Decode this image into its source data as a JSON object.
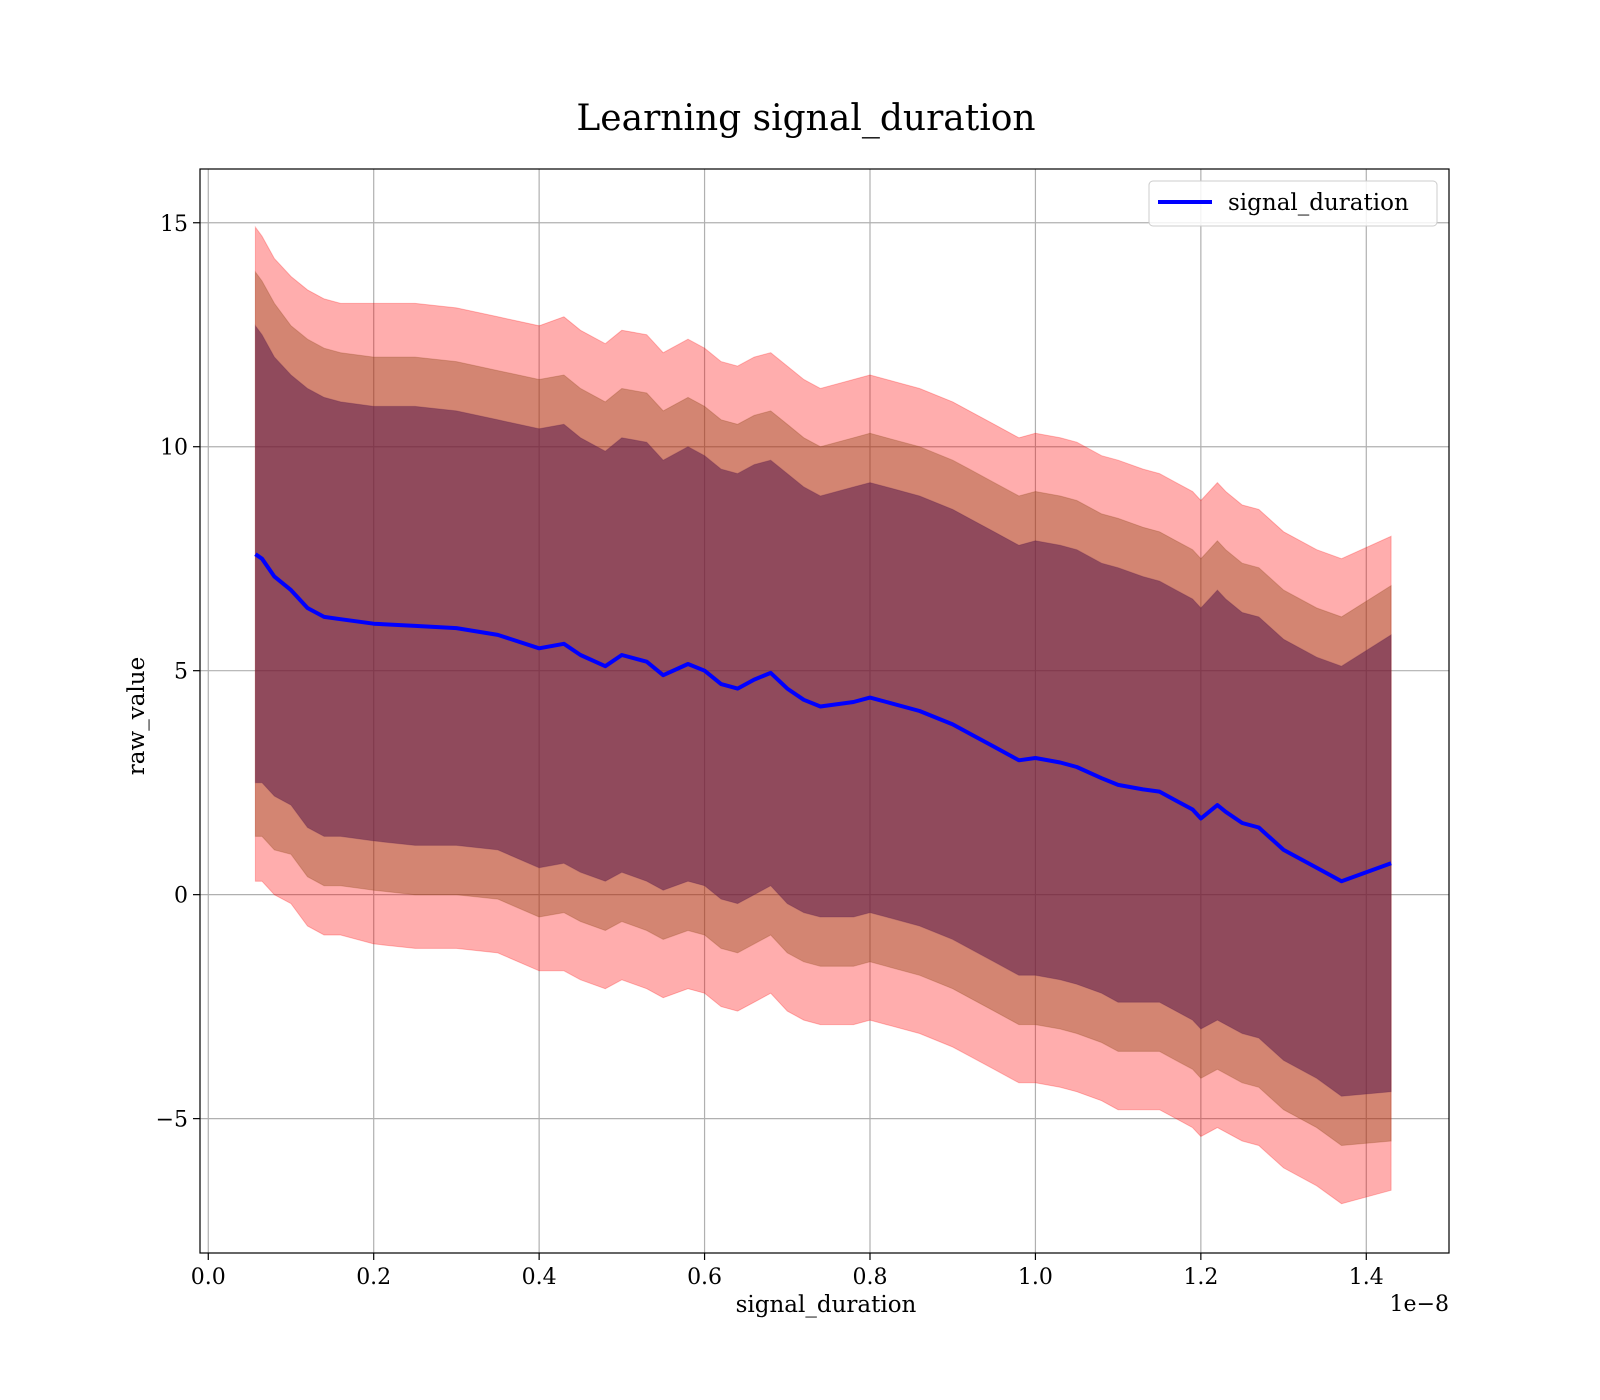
{
  "chart_data": {
    "type": "line",
    "title": "Learning signal_duration",
    "xlabel": "signal_duration",
    "ylabel": "raw_value",
    "x_offset_text": "1e−8",
    "x_scale": 1e-08,
    "xlim": [
      -0.01,
      1.5
    ],
    "ylim": [
      -8,
      16.2
    ],
    "x_ticks": [
      0.0,
      0.2,
      0.4,
      0.6,
      0.8,
      1.0,
      1.2,
      1.4
    ],
    "x_tick_labels": [
      "0.0",
      "0.2",
      "0.4",
      "0.6",
      "0.8",
      "1.0",
      "1.2",
      "1.4"
    ],
    "y_ticks": [
      -5,
      0,
      5,
      10,
      15
    ],
    "y_tick_labels": [
      "−5",
      "0",
      "5",
      "10",
      "15"
    ],
    "grid": true,
    "legend": {
      "position": "top-right",
      "entries": [
        "signal_duration"
      ]
    },
    "colors": {
      "mean_line": "#0000ff",
      "band_outer": "#ff0000",
      "band_middle": "#8b4513",
      "band_inner": "#5a1a4a",
      "grid": "#b0b0b0"
    },
    "x": [
      0.057,
      0.065,
      0.08,
      0.1,
      0.12,
      0.14,
      0.16,
      0.2,
      0.25,
      0.3,
      0.35,
      0.4,
      0.43,
      0.45,
      0.48,
      0.5,
      0.53,
      0.55,
      0.58,
      0.6,
      0.62,
      0.64,
      0.66,
      0.68,
      0.7,
      0.72,
      0.74,
      0.78,
      0.8,
      0.82,
      0.86,
      0.9,
      0.92,
      0.95,
      0.98,
      1.0,
      1.03,
      1.05,
      1.08,
      1.1,
      1.13,
      1.15,
      1.17,
      1.19,
      1.2,
      1.22,
      1.23,
      1.25,
      1.27,
      1.3,
      1.34,
      1.37,
      1.43
    ],
    "series": [
      {
        "name": "signal_duration",
        "values": [
          7.6,
          7.5,
          7.1,
          6.8,
          6.4,
          6.2,
          6.15,
          6.05,
          6.0,
          5.95,
          5.8,
          5.5,
          5.6,
          5.35,
          5.1,
          5.35,
          5.2,
          4.9,
          5.15,
          5.0,
          4.7,
          4.6,
          4.8,
          4.95,
          4.6,
          4.35,
          4.2,
          4.3,
          4.4,
          4.3,
          4.1,
          3.8,
          3.6,
          3.3,
          3.0,
          3.05,
          2.95,
          2.85,
          2.6,
          2.45,
          2.35,
          2.3,
          2.1,
          1.9,
          1.7,
          2.0,
          1.85,
          1.6,
          1.5,
          1.0,
          0.6,
          0.3,
          0.7
        ]
      }
    ],
    "bands": [
      {
        "level": "outer",
        "upper": [
          14.9,
          14.7,
          14.2,
          13.8,
          13.5,
          13.3,
          13.2,
          13.2,
          13.2,
          13.1,
          12.9,
          12.7,
          12.9,
          12.6,
          12.3,
          12.6,
          12.5,
          12.1,
          12.4,
          12.2,
          11.9,
          11.8,
          12.0,
          12.1,
          11.8,
          11.5,
          11.3,
          11.5,
          11.6,
          11.5,
          11.3,
          11.0,
          10.8,
          10.5,
          10.2,
          10.3,
          10.2,
          10.1,
          9.8,
          9.7,
          9.5,
          9.4,
          9.2,
          9.0,
          8.8,
          9.2,
          9.0,
          8.7,
          8.6,
          8.1,
          7.7,
          7.5,
          8.0
        ]
      },
      {
        "level": "middle",
        "upper": [
          13.9,
          13.7,
          13.2,
          12.7,
          12.4,
          12.2,
          12.1,
          12.0,
          12.0,
          11.9,
          11.7,
          11.5,
          11.6,
          11.3,
          11.0,
          11.3,
          11.2,
          10.8,
          11.1,
          10.9,
          10.6,
          10.5,
          10.7,
          10.8,
          10.5,
          10.2,
          10.0,
          10.2,
          10.3,
          10.2,
          10.0,
          9.7,
          9.5,
          9.2,
          8.9,
          9.0,
          8.9,
          8.8,
          8.5,
          8.4,
          8.2,
          8.1,
          7.9,
          7.7,
          7.5,
          7.9,
          7.7,
          7.4,
          7.3,
          6.8,
          6.4,
          6.2,
          6.9
        ]
      },
      {
        "level": "inner",
        "upper": [
          12.7,
          12.5,
          12.0,
          11.6,
          11.3,
          11.1,
          11.0,
          10.9,
          10.9,
          10.8,
          10.6,
          10.4,
          10.5,
          10.2,
          9.9,
          10.2,
          10.1,
          9.7,
          10.0,
          9.8,
          9.5,
          9.4,
          9.6,
          9.7,
          9.4,
          9.1,
          8.9,
          9.1,
          9.2,
          9.1,
          8.9,
          8.6,
          8.4,
          8.1,
          7.8,
          7.9,
          7.8,
          7.7,
          7.4,
          7.3,
          7.1,
          7.0,
          6.8,
          6.6,
          6.4,
          6.8,
          6.6,
          6.3,
          6.2,
          5.7,
          5.3,
          5.1,
          5.8
        ]
      }
    ]
  }
}
